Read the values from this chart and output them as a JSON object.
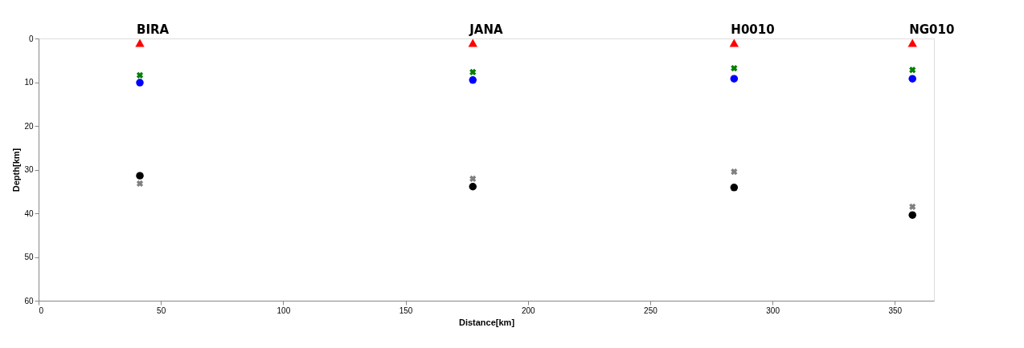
{
  "chart_data": {
    "type": "scatter",
    "xlabel": "Distance[km]",
    "ylabel": "Depth[km]",
    "xlim": [
      0,
      366
    ],
    "xticks": [
      0,
      50,
      100,
      150,
      200,
      250,
      300,
      350
    ],
    "ylim": [
      60,
      0
    ],
    "yticks": [
      0,
      10,
      20,
      30,
      40,
      50,
      60
    ],
    "x": [
      41.4,
      177.5,
      284.3,
      357.2
    ],
    "series": [
      {
        "color": "#ff0000",
        "marker": "triangle",
        "values": [
          1,
          1,
          1,
          1
        ]
      },
      {
        "color": "#008000",
        "marker": "cross",
        "values": [
          8.4,
          7.7,
          6.8,
          7.2
        ]
      },
      {
        "color": "#0000ff",
        "marker": "circle",
        "values": [
          10.1,
          9.5,
          9.2,
          9.2
        ]
      },
      {
        "color": "#808080",
        "marker": "cross",
        "values": [
          33.2,
          32.1,
          30.5,
          38.5
        ]
      },
      {
        "color": "#000000",
        "marker": "circle",
        "values": [
          31.4,
          33.9,
          34.1,
          40.4
        ]
      }
    ],
    "annotations": [
      {
        "text": "BIRA",
        "x": 41.4,
        "y": 0
      },
      {
        "text": "JANA",
        "x": 177.5,
        "y": 0
      },
      {
        "text": "H0010",
        "x": 284.3,
        "y": 0
      },
      {
        "text": "NG010",
        "x": 357.2,
        "y": 0
      }
    ],
    "grid": false
  }
}
